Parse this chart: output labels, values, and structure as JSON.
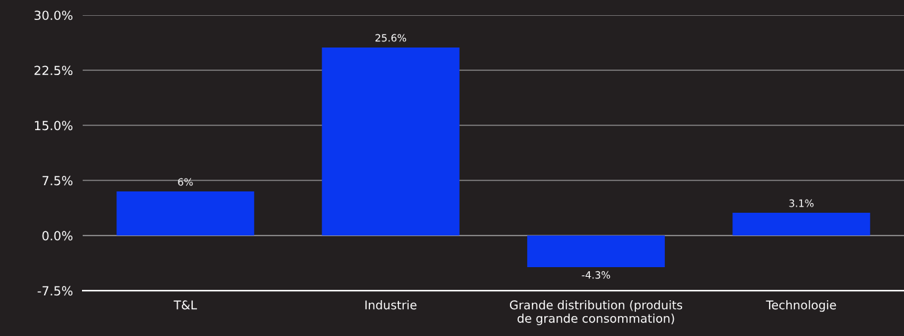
{
  "chart_data": {
    "type": "bar",
    "categories": [
      "T&L",
      "Industrie",
      "Grande distribution (produits\nde grande consommation)",
      "Technologie"
    ],
    "values": [
      6,
      25.6,
      -4.3,
      3.1
    ],
    "value_labels": [
      "6%",
      "25.6%",
      "-4.3%",
      "3.1%"
    ],
    "color": "#0a37f0",
    "ylim": [
      -7.5,
      30
    ],
    "yticks": [
      {
        "value": -7.5,
        "label": "-7.5%"
      },
      {
        "value": 0,
        "label": "0.0%"
      },
      {
        "value": 7.5,
        "label": "7.5%"
      },
      {
        "value": 15,
        "label": "15.0%"
      },
      {
        "value": 22.5,
        "label": "22.5%"
      },
      {
        "value": 30,
        "label": "30.0%"
      }
    ],
    "grid": "y"
  }
}
